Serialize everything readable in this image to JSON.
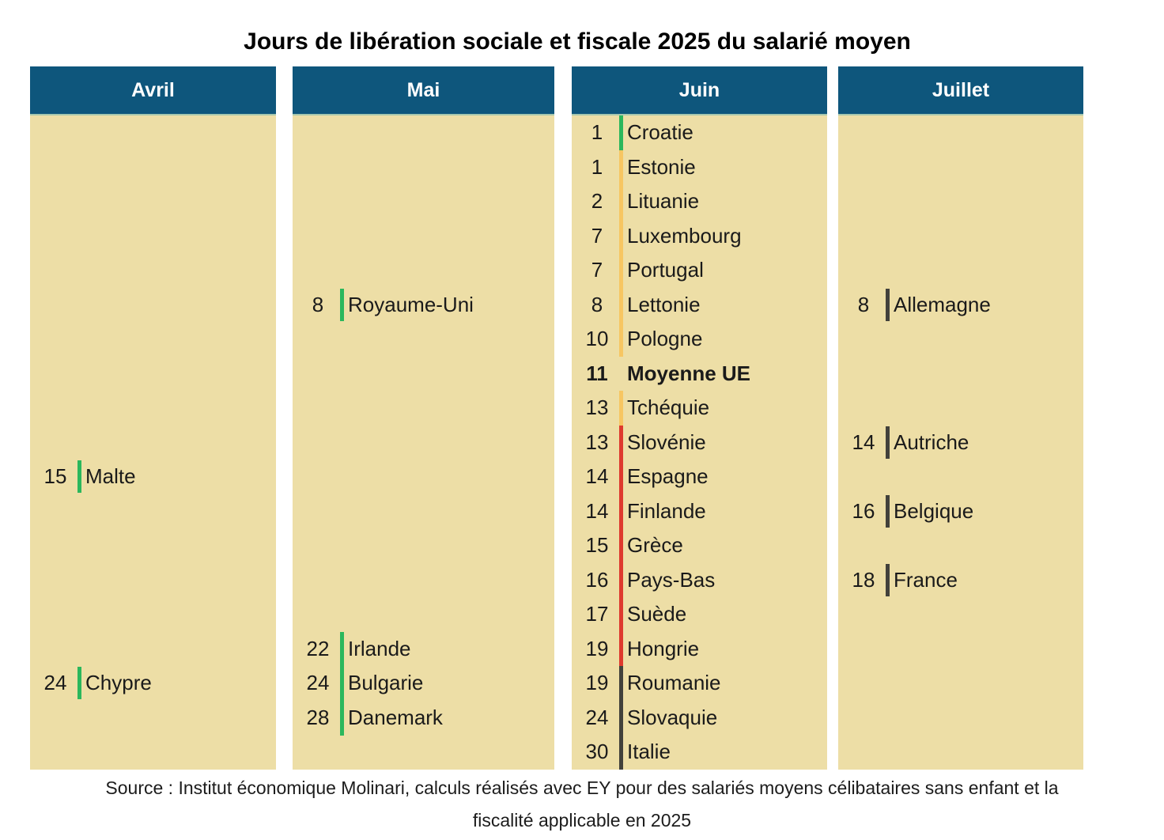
{
  "title": "Jours de libération sociale et fiscale 2025 du salarié moyen",
  "source": {
    "line1": "Source : Institut économique Molinari, calculs réalisés avec EY pour des salariés moyens célibataires sans enfant et la",
    "line2": "fiscalité applicable en 2025"
  },
  "colors": {
    "header_bg": "#0E567C",
    "header_text": "#FFFFFF",
    "body_bg": "#EDDEA6",
    "tick_green": "#2BB75C",
    "tick_amber": "#F7C662",
    "tick_red": "#DE3A2E",
    "tick_dark": "#42413B"
  },
  "grid": {
    "rows": 19
  },
  "columns": [
    {
      "label": "Avril",
      "entries": [
        {
          "day": "15",
          "name": "Malte",
          "row": 10,
          "tick": "green",
          "joined": false,
          "bold": false
        },
        {
          "day": "24",
          "name": "Chypre",
          "row": 16,
          "tick": "green",
          "joined": false,
          "bold": false
        }
      ]
    },
    {
      "label": "Mai",
      "entries": [
        {
          "day": "8",
          "name": "Royaume-Uni",
          "row": 5,
          "tick": "green",
          "joined": false,
          "bold": false
        },
        {
          "day": "22",
          "name": "Irlande",
          "row": 15,
          "tick": "green",
          "joined": true,
          "bold": false
        },
        {
          "day": "24",
          "name": "Bulgarie",
          "row": 16,
          "tick": "green",
          "joined": true,
          "bold": false
        },
        {
          "day": "28",
          "name": "Danemark",
          "row": 17,
          "tick": "green",
          "joined": true,
          "bold": false
        }
      ]
    },
    {
      "label": "Juin",
      "entries": [
        {
          "day": "1",
          "name": "Croatie",
          "row": 0,
          "tick": "green",
          "joined": true,
          "bold": false
        },
        {
          "day": "1",
          "name": "Estonie",
          "row": 1,
          "tick": "amber",
          "joined": true,
          "bold": false
        },
        {
          "day": "2",
          "name": "Lituanie",
          "row": 2,
          "tick": "amber",
          "joined": true,
          "bold": false
        },
        {
          "day": "7",
          "name": "Luxembourg",
          "row": 3,
          "tick": "amber",
          "joined": true,
          "bold": false
        },
        {
          "day": "7",
          "name": "Portugal",
          "row": 4,
          "tick": "amber",
          "joined": true,
          "bold": false
        },
        {
          "day": "8",
          "name": "Lettonie",
          "row": 5,
          "tick": "amber",
          "joined": true,
          "bold": false
        },
        {
          "day": "10",
          "name": "Pologne",
          "row": 6,
          "tick": "amber",
          "joined": true,
          "bold": false
        },
        {
          "day": "11",
          "name": "Moyenne UE",
          "row": 7,
          "tick": null,
          "joined": false,
          "bold": true
        },
        {
          "day": "13",
          "name": "Tchéquie",
          "row": 8,
          "tick": "amber",
          "joined": true,
          "bold": false
        },
        {
          "day": "13",
          "name": "Slovénie",
          "row": 9,
          "tick": "red",
          "joined": true,
          "bold": false
        },
        {
          "day": "14",
          "name": "Espagne",
          "row": 10,
          "tick": "red",
          "joined": true,
          "bold": false
        },
        {
          "day": "14",
          "name": "Finlande",
          "row": 11,
          "tick": "red",
          "joined": true,
          "bold": false
        },
        {
          "day": "15",
          "name": "Grèce",
          "row": 12,
          "tick": "red",
          "joined": true,
          "bold": false
        },
        {
          "day": "16",
          "name": "Pays-Bas",
          "row": 13,
          "tick": "red",
          "joined": true,
          "bold": false
        },
        {
          "day": "17",
          "name": "Suède",
          "row": 14,
          "tick": "red",
          "joined": true,
          "bold": false
        },
        {
          "day": "19",
          "name": "Hongrie",
          "row": 15,
          "tick": "red",
          "joined": true,
          "bold": false
        },
        {
          "day": "19",
          "name": "Roumanie",
          "row": 16,
          "tick": "dark",
          "joined": true,
          "bold": false
        },
        {
          "day": "24",
          "name": "Slovaquie",
          "row": 17,
          "tick": "dark",
          "joined": true,
          "bold": false
        },
        {
          "day": "30",
          "name": "Italie",
          "row": 18,
          "tick": "dark",
          "joined": true,
          "bold": false
        }
      ]
    },
    {
      "label": "Juillet",
      "entries": [
        {
          "day": "8",
          "name": "Allemagne",
          "row": 5,
          "tick": "dark",
          "joined": false,
          "bold": false
        },
        {
          "day": "14",
          "name": "Autriche",
          "row": 9,
          "tick": "dark",
          "joined": false,
          "bold": false
        },
        {
          "day": "16",
          "name": "Belgique",
          "row": 11,
          "tick": "dark",
          "joined": false,
          "bold": false
        },
        {
          "day": "18",
          "name": "France",
          "row": 13,
          "tick": "dark",
          "joined": false,
          "bold": false
        }
      ]
    }
  ],
  "chart_data": {
    "type": "table",
    "title": "Jours de libération sociale et fiscale 2025 du salarié moyen",
    "columns": [
      "Avril",
      "Mai",
      "Juin",
      "Juillet"
    ],
    "legend_colors": {
      "green": "#2BB75C",
      "amber": "#F7C662",
      "red": "#DE3A2E",
      "dark": "#42413B"
    },
    "points": [
      {
        "month": "Avril",
        "day": 15,
        "country": "Malte",
        "color": "green"
      },
      {
        "month": "Avril",
        "day": 24,
        "country": "Chypre",
        "color": "green"
      },
      {
        "month": "Mai",
        "day": 8,
        "country": "Royaume-Uni",
        "color": "green"
      },
      {
        "month": "Mai",
        "day": 22,
        "country": "Irlande",
        "color": "green"
      },
      {
        "month": "Mai",
        "day": 24,
        "country": "Bulgarie",
        "color": "green"
      },
      {
        "month": "Mai",
        "day": 28,
        "country": "Danemark",
        "color": "green"
      },
      {
        "month": "Juin",
        "day": 1,
        "country": "Croatie",
        "color": "green"
      },
      {
        "month": "Juin",
        "day": 1,
        "country": "Estonie",
        "color": "amber"
      },
      {
        "month": "Juin",
        "day": 2,
        "country": "Lituanie",
        "color": "amber"
      },
      {
        "month": "Juin",
        "day": 7,
        "country": "Luxembourg",
        "color": "amber"
      },
      {
        "month": "Juin",
        "day": 7,
        "country": "Portugal",
        "color": "amber"
      },
      {
        "month": "Juin",
        "day": 8,
        "country": "Lettonie",
        "color": "amber"
      },
      {
        "month": "Juin",
        "day": 10,
        "country": "Pologne",
        "color": "amber"
      },
      {
        "month": "Juin",
        "day": 11,
        "country": "Moyenne UE",
        "color": null,
        "emphasis": "bold"
      },
      {
        "month": "Juin",
        "day": 13,
        "country": "Tchéquie",
        "color": "amber"
      },
      {
        "month": "Juin",
        "day": 13,
        "country": "Slovénie",
        "color": "red"
      },
      {
        "month": "Juin",
        "day": 14,
        "country": "Espagne",
        "color": "red"
      },
      {
        "month": "Juin",
        "day": 14,
        "country": "Finlande",
        "color": "red"
      },
      {
        "month": "Juin",
        "day": 15,
        "country": "Grèce",
        "color": "red"
      },
      {
        "month": "Juin",
        "day": 16,
        "country": "Pays-Bas",
        "color": "red"
      },
      {
        "month": "Juin",
        "day": 17,
        "country": "Suède",
        "color": "red"
      },
      {
        "month": "Juin",
        "day": 19,
        "country": "Hongrie",
        "color": "red"
      },
      {
        "month": "Juin",
        "day": 19,
        "country": "Roumanie",
        "color": "dark"
      },
      {
        "month": "Juin",
        "day": 24,
        "country": "Slovaquie",
        "color": "dark"
      },
      {
        "month": "Juin",
        "day": 30,
        "country": "Italie",
        "color": "dark"
      },
      {
        "month": "Juillet",
        "day": 8,
        "country": "Allemagne",
        "color": "dark"
      },
      {
        "month": "Juillet",
        "day": 14,
        "country": "Autriche",
        "color": "dark"
      },
      {
        "month": "Juillet",
        "day": 16,
        "country": "Belgique",
        "color": "dark"
      },
      {
        "month": "Juillet",
        "day": 18,
        "country": "France",
        "color": "dark"
      }
    ],
    "source": "Source : Institut économique Molinari, calculs réalisés avec EY pour des salariés moyens célibataires sans enfant et la fiscalité applicable en 2025"
  }
}
